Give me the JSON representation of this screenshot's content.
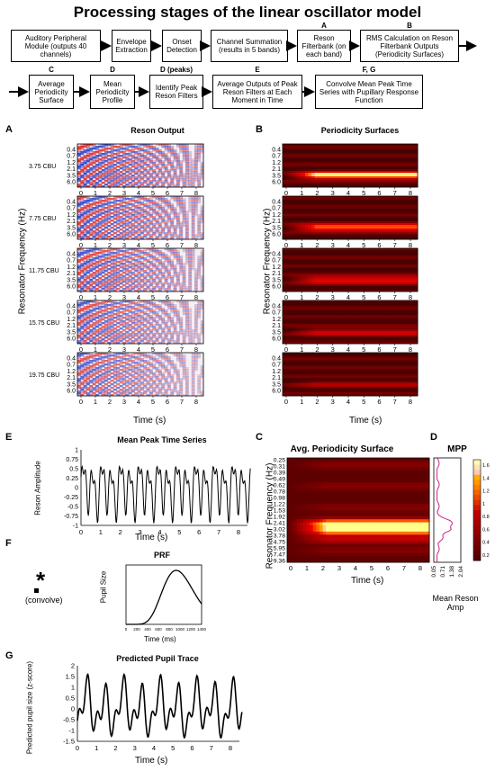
{
  "title": "Processing stages of the linear oscillator model",
  "flow": {
    "row1": [
      {
        "tag": "",
        "label": "Auditory Peripheral Module (outputs 40 channels)"
      },
      {
        "tag": "",
        "label": "Envelope Extraction"
      },
      {
        "tag": "",
        "label": "Onset Detection"
      },
      {
        "tag": "",
        "label": "Channel Summation (results in 5 bands)"
      },
      {
        "tag": "A",
        "label": "Reson Filterbank (on each band)"
      },
      {
        "tag": "B",
        "label": "RMS Calculation on Reson Filterbank Outputs (Periodicity Surfaces)"
      }
    ],
    "row2": [
      {
        "tag": "C",
        "label": "Average Periodicity Surface"
      },
      {
        "tag": "D",
        "label": "Mean Periodicity Profile"
      },
      {
        "tag": "D (peaks)",
        "label": "Identify Peak Reson Filters"
      },
      {
        "tag": "E",
        "label": "Average Outputs of Peak Reson Filters at Each Moment in Time"
      },
      {
        "tag": "F, G",
        "label": "Convolve Mean Peak Time Series with Pupillary Response Function"
      }
    ]
  },
  "panelA": {
    "letter": "A",
    "title": "Reson Output",
    "bands": [
      "3.75 CBU",
      "7.75 CBU",
      "11.75 CBU",
      "15.75 CBU",
      "19.75 CBU"
    ],
    "yticks": [
      "0.4",
      "0.7",
      "1.2",
      "2.1",
      "3.5",
      "6.0"
    ],
    "xticks": [
      "0",
      "1",
      "2",
      "3",
      "4",
      "5",
      "6",
      "7",
      "8"
    ],
    "ylabel": "Resonator Frequency (Hz)",
    "xlabel": "Time (s)"
  },
  "panelB": {
    "letter": "B",
    "title": "Periodicity Surfaces",
    "yticks": [
      "0.4",
      "0.7",
      "1.2",
      "2.1",
      "3.5",
      "6.0"
    ],
    "xticks": [
      "0",
      "1",
      "2",
      "3",
      "4",
      "5",
      "6",
      "7",
      "8"
    ],
    "ylabel": "Resonator Frequency (Hz)",
    "xlabel": "Time (s)"
  },
  "panelC": {
    "letter": "C",
    "title": "Avg. Periodicity Surface",
    "yticks": [
      "0.25",
      "0.31",
      "0.39",
      "0.49",
      "0.62",
      "0.78",
      "0.98",
      "1.22",
      "1.53",
      "1.92",
      "2.41",
      "3.02",
      "3.78",
      "4.75",
      "5.95",
      "7.47",
      "9.36"
    ],
    "xticks": [
      "0",
      "1",
      "2",
      "3",
      "4",
      "5",
      "6",
      "7",
      "8"
    ],
    "ylabel": "Resonator Frequency (Hz)",
    "xlabel": "Time (s)"
  },
  "panelD": {
    "letter": "D",
    "title": "MPP",
    "xticks": [
      "0.05",
      "0.71",
      "1.38",
      "2.04"
    ],
    "xlabel": "Mean Reson Amp",
    "colorbar_ticks": [
      "1.6",
      "1.4",
      "1.2",
      "1",
      "0.8",
      "0.6",
      "0.4",
      "0.2"
    ]
  },
  "panelE": {
    "letter": "E",
    "title": "Mean Peak Time Series",
    "ylabel": "Reson Amplitude",
    "xlabel": "Time (s)",
    "yticks": [
      "1",
      "0.75",
      "0.5",
      "0.25",
      "0",
      "-0.25",
      "-0.5",
      "-0.75",
      "-1"
    ],
    "xticks": [
      "0",
      "1",
      "2",
      "3",
      "4",
      "5",
      "6",
      "7",
      "8"
    ]
  },
  "panelF": {
    "letter": "F",
    "title": "PRF",
    "convolve": "(convolve)",
    "star": "*",
    "ylabel": "Pupil Size",
    "xlabel": "Time (ms)",
    "xticks": [
      "0",
      "200",
      "400",
      "600",
      "800",
      "1000",
      "1200",
      "1400"
    ]
  },
  "panelG": {
    "letter": "G",
    "title": "Predicted Pupil Trace",
    "ylabel": "Predicted pupil size (z-score)",
    "xlabel": "Time (s)",
    "yticks": [
      "2",
      "1.5",
      "1",
      "0.5",
      "0",
      "-0.5",
      "-1",
      "-1.5"
    ],
    "xticks": [
      "0",
      "1",
      "2",
      "3",
      "4",
      "5",
      "6",
      "7",
      "8"
    ]
  }
}
